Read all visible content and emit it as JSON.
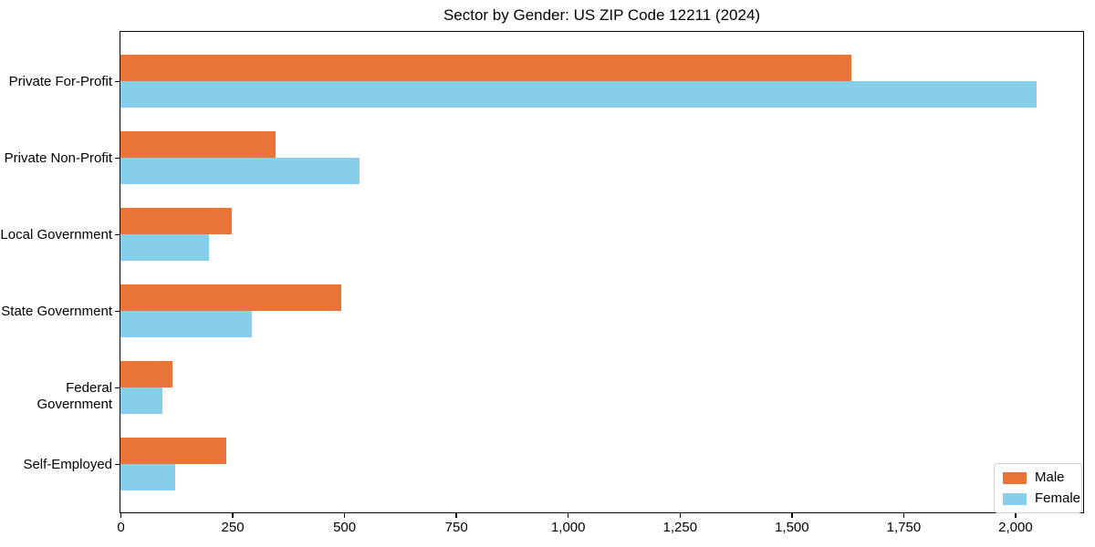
{
  "chart_data": {
    "type": "bar",
    "orientation": "horizontal",
    "title": "Sector by Gender: US ZIP Code 12211 (2024)",
    "categories": [
      "Private For-Profit",
      "Private Non-Profit",
      "Local Government",
      "State Government",
      "Federal Government",
      "Self-Employed"
    ],
    "series": [
      {
        "name": "Male",
        "color": "#E87438",
        "values": [
          1633,
          346,
          249,
          493,
          116,
          236
        ]
      },
      {
        "name": "Female",
        "color": "#87CEEB",
        "values": [
          2047,
          534,
          198,
          293,
          94,
          122
        ]
      }
    ],
    "xlabel": "",
    "ylabel": "",
    "xlim": [
      0,
      2150
    ],
    "xtick_values": [
      0,
      250,
      500,
      750,
      1000,
      1250,
      1500,
      1750,
      2000
    ],
    "xtick_labels": [
      "0",
      "250",
      "500",
      "750",
      "1,000",
      "1,250",
      "1,500",
      "1,750",
      "2,000"
    ],
    "grid": false,
    "legend_position": "lower right"
  },
  "colors": {
    "male": "#E87438",
    "female": "#87CEEB",
    "spine": "#000000",
    "legend_border": "#d0d0d0"
  }
}
